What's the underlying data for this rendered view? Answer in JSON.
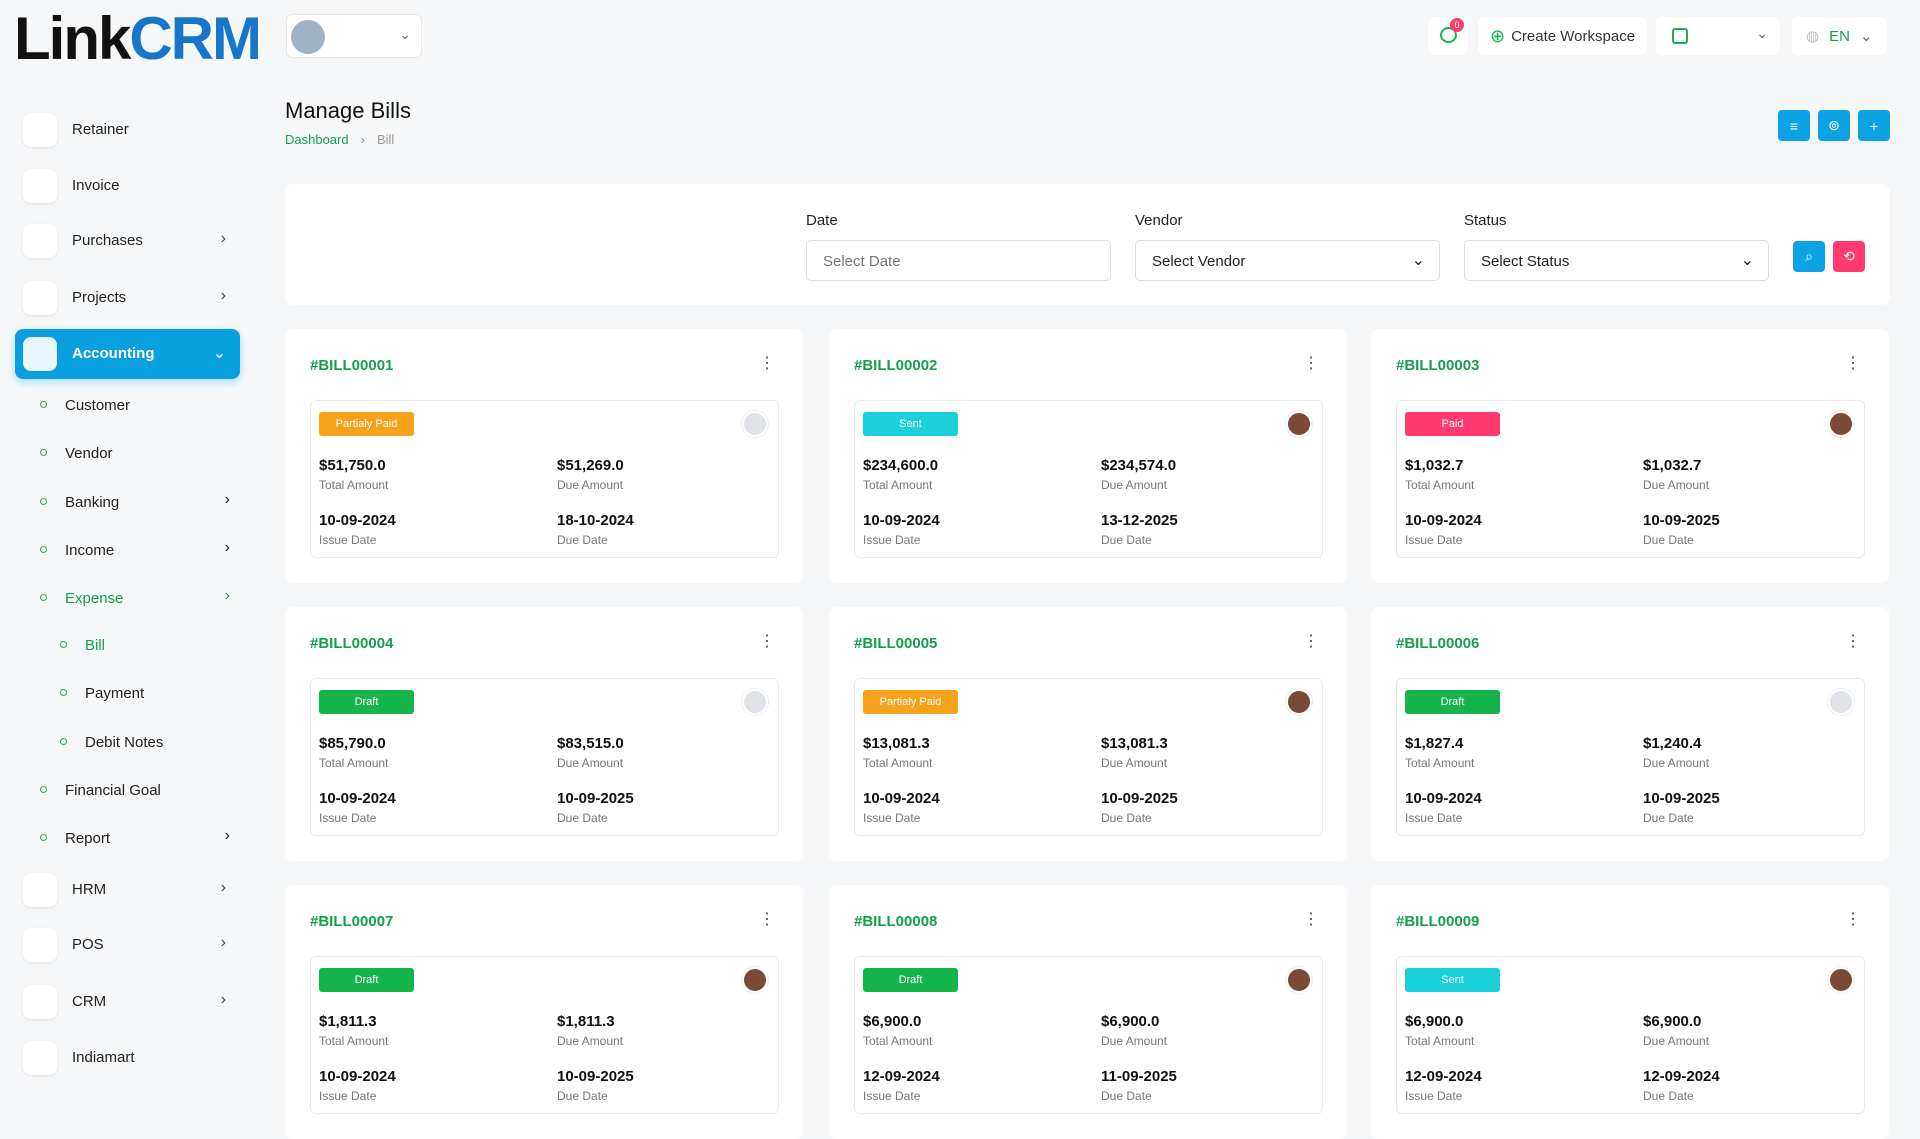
{
  "header": {
    "logo_prefix": "Link",
    "logo_suffix": "CRM",
    "notification_count": "0",
    "create_workspace": "Create Workspace",
    "language": "EN"
  },
  "sidebar": {
    "items": [
      {
        "label": "Retainer",
        "level": 0
      },
      {
        "label": "Invoice",
        "level": 0
      },
      {
        "label": "Purchases",
        "level": 0,
        "arrow": true
      },
      {
        "label": "Projects",
        "level": 0,
        "arrow": true
      },
      {
        "label": "Accounting",
        "level": 0,
        "arrow": true,
        "active": true
      },
      {
        "label": "Customer",
        "level": 1
      },
      {
        "label": "Vendor",
        "level": 1
      },
      {
        "label": "Banking",
        "level": 1,
        "arrow": true
      },
      {
        "label": "Income",
        "level": 1,
        "arrow": true
      },
      {
        "label": "Expense",
        "level": 1,
        "arrow": true,
        "active": true
      },
      {
        "label": "Bill",
        "level": 2,
        "active": true
      },
      {
        "label": "Payment",
        "level": 2
      },
      {
        "label": "Debit Notes",
        "level": 2
      },
      {
        "label": "Financial Goal",
        "level": 1
      },
      {
        "label": "Report",
        "level": 1,
        "arrow": true
      },
      {
        "label": "HRM",
        "level": 0,
        "arrow": true
      },
      {
        "label": "POS",
        "level": 0,
        "arrow": true
      },
      {
        "label": "CRM",
        "level": 0,
        "arrow": true
      },
      {
        "label": "Indiamart",
        "level": 0
      }
    ]
  },
  "page": {
    "title": "Manage Bills",
    "breadcrumb": [
      "Dashboard",
      "Bill"
    ]
  },
  "filters": [
    {
      "label": "Date",
      "placeholder": "Select Date"
    },
    {
      "label": "Vendor",
      "placeholder": "Select Vendor",
      "dropdown": true
    },
    {
      "label": "Status",
      "placeholder": "Select Status",
      "dropdown": true
    }
  ],
  "card_labels": {
    "total": "Total Amount",
    "due": "Due Amount",
    "issue_date": "Issue Date",
    "due_date": "Due Date"
  },
  "bills": [
    {
      "id": "#BILL00001",
      "status": "Partialy Paid",
      "color": "#f7a21b",
      "total": "$51,750.0",
      "due": "$51,269.0",
      "issue_date": "10-09-2024",
      "due_date": "18-10-2024"
    },
    {
      "id": "#BILL00002",
      "status": "Sent",
      "color": "#1bd0d8",
      "total": "$234,600.0",
      "due": "$234,574.0",
      "issue_date": "10-09-2024",
      "due_date": "13-12-2025"
    },
    {
      "id": "#BILL00003",
      "status": "Paid",
      "color": "#ff3a6e",
      "total": "$1,032.7",
      "due": "$1,032.7",
      "issue_date": "10-09-2024",
      "due_date": "10-09-2025"
    },
    {
      "id": "#BILL00004",
      "status": "Draft",
      "color": "#15b54c",
      "total": "$85,790.0",
      "due": "$83,515.0",
      "issue_date": "10-09-2024",
      "due_date": "10-09-2025"
    },
    {
      "id": "#BILL00005",
      "status": "Partialy Paid",
      "color": "#f7a21b",
      "total": "$13,081.3",
      "due": "$13,081.3",
      "issue_date": "10-09-2024",
      "due_date": "10-09-2025"
    },
    {
      "id": "#BILL00006",
      "status": "Draft",
      "color": "#15b54c",
      "total": "$1,827.4",
      "due": "$1,240.4",
      "issue_date": "10-09-2024",
      "due_date": "10-09-2025"
    },
    {
      "id": "#BILL00007",
      "status": "Draft",
      "color": "#15b54c",
      "total": "$1,811.3",
      "due": "$1,811.3",
      "issue_date": "10-09-2024",
      "due_date": "10-09-2025"
    },
    {
      "id": "#BILL00008",
      "status": "Draft",
      "color": "#15b54c",
      "total": "$6,900.0",
      "due": "$6,900.0",
      "issue_date": "12-09-2024",
      "due_date": "11-09-2025"
    },
    {
      "id": "#BILL00009",
      "status": "Sent",
      "color": "#1bd0d8",
      "total": "$6,900.0",
      "due": "$6,900.0",
      "issue_date": "12-09-2024",
      "due_date": "12-09-2024"
    }
  ]
}
